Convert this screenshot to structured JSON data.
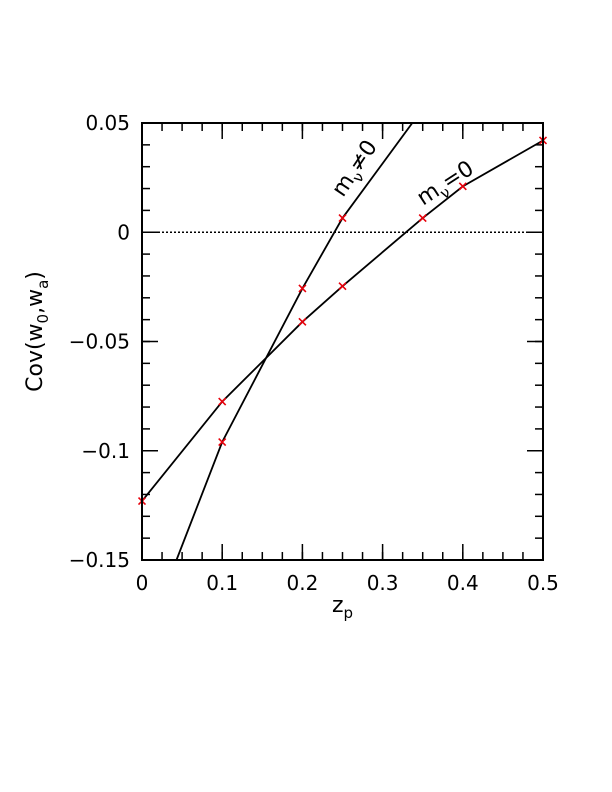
{
  "chart_data": {
    "type": "line",
    "title": "",
    "xlabel": "z_p",
    "xlabel_main": "z",
    "xlabel_sub": "p",
    "ylabel": "Cov(w_0,w_a)",
    "ylabel_parts": {
      "prefix": "Cov(w",
      "sub1": "0",
      "mid": ",w",
      "sub2": "a",
      "suffix": ")"
    },
    "xlim": [
      0,
      0.5
    ],
    "ylim": [
      -0.15,
      0.05
    ],
    "x_ticks": [
      0,
      0.1,
      0.2,
      0.3,
      0.4,
      0.5
    ],
    "x_tick_labels": [
      "0",
      "0.1",
      "0.2",
      "0.3",
      "0.4",
      "0.5"
    ],
    "y_ticks": [
      -0.15,
      -0.1,
      -0.05,
      0,
      0.05
    ],
    "y_tick_labels": [
      "−0.15",
      "−0.1",
      "−0.05",
      "0",
      "0.05"
    ],
    "zero_reference_line": {
      "y": 0,
      "style": "dotted"
    },
    "grid": false,
    "legend": "none",
    "series": [
      {
        "label_main": "m",
        "label_sub": "ν",
        "label_rel": "=0",
        "line_x": [
          0,
          0.1,
          0.2,
          0.25,
          0.35,
          0.4,
          0.5
        ],
        "line_y": [
          -0.123,
          -0.0775,
          -0.041,
          -0.0247,
          0.0065,
          0.021,
          0.042
        ],
        "points_x": [
          0,
          0.1,
          0.2,
          0.25,
          0.35,
          0.4,
          0.5
        ],
        "points_y": [
          -0.123,
          -0.0775,
          -0.041,
          -0.0247,
          0.0065,
          0.021,
          0.042
        ]
      },
      {
        "label_main": "m",
        "label_sub": "ν",
        "label_rel": "≠0",
        "line_x": [
          0.043,
          0.1,
          0.2,
          0.25,
          0.337
        ],
        "line_y": [
          -0.15,
          -0.096,
          -0.0257,
          0.0065,
          0.05
        ],
        "points_x": [
          0.1,
          0.2,
          0.25
        ],
        "points_y": [
          -0.096,
          -0.0257,
          0.0065
        ]
      }
    ],
    "colors": {
      "line": "#000000",
      "marker": "#e8000b",
      "zero_line": "#000000"
    }
  }
}
